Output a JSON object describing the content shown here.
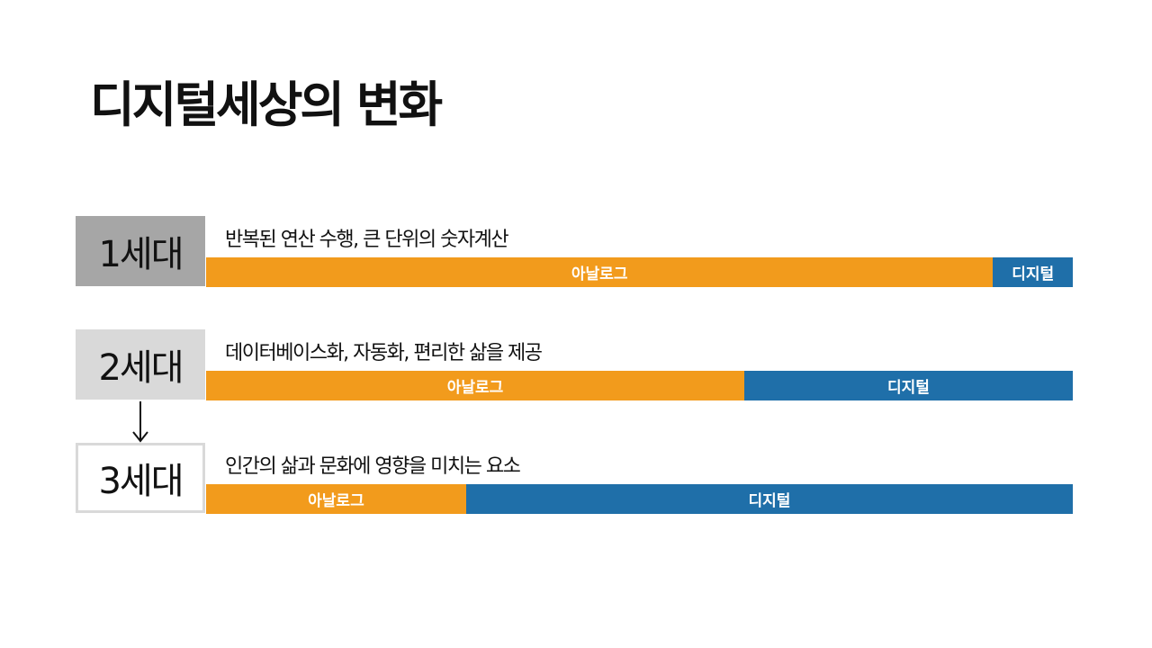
{
  "title": "디지털세상의 변화",
  "colors": {
    "analog": "#f29b1c",
    "digital": "#1f6fa9"
  },
  "generations": [
    {
      "label": "1세대",
      "description": "반복된 연산 수행, 큰 단위의 숫자계산",
      "analog_label": "아날로그",
      "digital_label": "디지털",
      "analog_share": 0.908
    },
    {
      "label": "2세대",
      "description": "데이터베이스화, 자동화, 편리한 삶을 제공",
      "analog_label": "아날로그",
      "digital_label": "디지털",
      "analog_share": 0.621
    },
    {
      "label": "3세대",
      "description": "인간의 삶과 문화에 영향을 미치는 요소",
      "analog_label": "아날로그",
      "digital_label": "디지털",
      "analog_share": 0.3
    }
  ]
}
